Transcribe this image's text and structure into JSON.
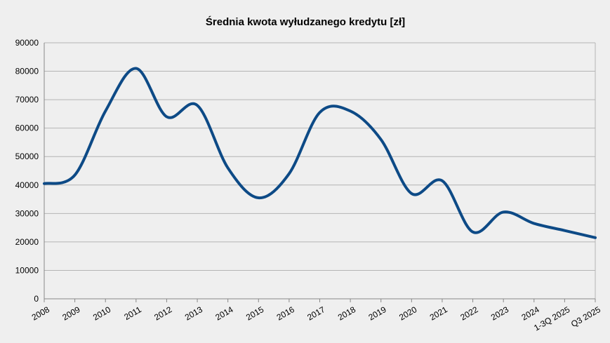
{
  "chart_data": {
    "type": "line",
    "title": "Średnia kwota wyłudzanego kredytu [zł]",
    "xlabel": "",
    "ylabel": "",
    "ylim": [
      0,
      90000
    ],
    "yticks": [
      0,
      10000,
      20000,
      30000,
      40000,
      50000,
      60000,
      70000,
      80000,
      90000
    ],
    "grid": true,
    "legend": "none",
    "categories": [
      "2008",
      "2009",
      "2010",
      "2011",
      "2012",
      "2013",
      "2014",
      "2015",
      "2016",
      "2017",
      "2018",
      "2019",
      "2020",
      "2021",
      "2022",
      "2023",
      "2024",
      "1-3Q 2025",
      "Q3 2025"
    ],
    "series": [
      {
        "color": "#0d4a86",
        "values": [
          40500,
          43500,
          66000,
          81000,
          64000,
          68000,
          46000,
          35500,
          44000,
          65500,
          66000,
          56000,
          37000,
          41500,
          23500,
          30500,
          26500,
          24000,
          21500
        ]
      }
    ]
  },
  "colors": {
    "background": "#efefef",
    "plot_background": "#efefef",
    "grid": "#b4b4b4",
    "axis": "#888888"
  }
}
